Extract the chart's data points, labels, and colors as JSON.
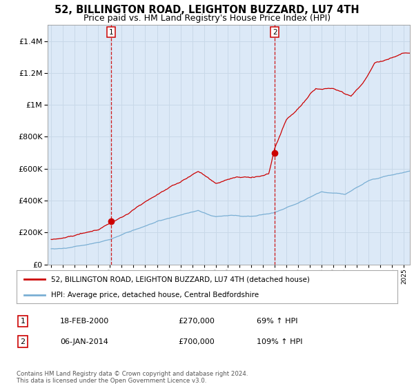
{
  "title": "52, BILLINGTON ROAD, LEIGHTON BUZZARD, LU7 4TH",
  "subtitle": "Price paid vs. HM Land Registry's House Price Index (HPI)",
  "title_fontsize": 10.5,
  "subtitle_fontsize": 9,
  "background_plot": "#dce9f7",
  "background_between": "#dce9f7",
  "background_fig": "#ffffff",
  "grid_color": "#c8d8e8",
  "hpi_color": "#7aafd4",
  "price_color": "#cc0000",
  "ylim": [
    0,
    1500000
  ],
  "xlim_start": 1994.7,
  "xlim_end": 2025.5,
  "sale1_x": 2000.12,
  "sale1_y": 270000,
  "sale2_x": 2014.02,
  "sale2_y": 700000,
  "legend_label_price": "52, BILLINGTON ROAD, LEIGHTON BUZZARD, LU7 4TH (detached house)",
  "legend_label_hpi": "HPI: Average price, detached house, Central Bedfordshire",
  "annotation1_num": "1",
  "annotation1_date": "18-FEB-2000",
  "annotation1_price": "£270,000",
  "annotation1_hpi": "69% ↑ HPI",
  "annotation2_num": "2",
  "annotation2_date": "06-JAN-2014",
  "annotation2_price": "£700,000",
  "annotation2_hpi": "109% ↑ HPI",
  "footnote": "Contains HM Land Registry data © Crown copyright and database right 2024.\nThis data is licensed under the Open Government Licence v3.0."
}
